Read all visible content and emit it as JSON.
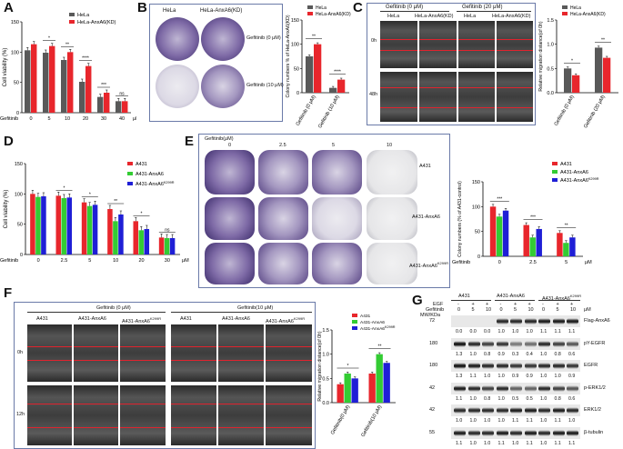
{
  "panels": [
    "A",
    "B",
    "C",
    "D",
    "E",
    "F",
    "G"
  ],
  "panelA": {
    "ylabel": "Cell viability (%)",
    "xprefix": "Gefitinib",
    "xunit": "μM",
    "legend": [
      "HeLa",
      "HeLa-AnxA6(KD)"
    ],
    "colors": [
      "#595959",
      "#e8262c"
    ],
    "chart_data": {
      "type": "bar",
      "categories": [
        "0",
        "5",
        "10",
        "20",
        "30",
        "40"
      ],
      "ylim": [
        0,
        150
      ],
      "yticks": [
        0,
        50,
        100,
        150
      ],
      "series": [
        {
          "name": "HeLa",
          "values": [
            103,
            99,
            87,
            51,
            26,
            19
          ]
        },
        {
          "name": "HeLa-AnxA6(KD)",
          "values": [
            113,
            110,
            100,
            77,
            33,
            19
          ]
        }
      ],
      "sig": [
        "",
        "*",
        "**",
        "****",
        "***",
        "ns"
      ]
    }
  },
  "panelB": {
    "col_labels": [
      "HeLa",
      "HeLa-AnxA6(KD)"
    ],
    "row_labels": [
      "Gefitinib (0 μM)",
      "Gefitinib (10 μM)"
    ],
    "ylabel": "Colony numbers % of HeLa-AnxA6(KD)",
    "legend": [
      "HeLa",
      "HeLa-AnxA6(KD)"
    ],
    "chart_data": {
      "type": "bar",
      "categories": [
        "Gefitinib (0 μM)",
        "Gefitinib (10 μM)"
      ],
      "ylim": [
        0,
        150
      ],
      "yticks": [
        0,
        50,
        100,
        150
      ],
      "series": [
        {
          "name": "HeLa",
          "values": [
            75,
            10
          ]
        },
        {
          "name": "HeLa-AnxA6(KD)",
          "values": [
            100,
            27
          ]
        }
      ],
      "sig": [
        "**",
        "****"
      ]
    }
  },
  "panelC": {
    "groups": [
      "Gefitinib (0 μM)",
      "Gefitinib (20 μM)"
    ],
    "cols": [
      "HeLa",
      "HeLa-AnxA6(KD)",
      "HeLa",
      "HeLa-AnxA6(KD)"
    ],
    "rows": [
      "0h",
      "48h"
    ],
    "ylabel": "Relative migration distance(of 0h)",
    "legend": [
      "HeLa",
      "HeLa-AnxA6(KD)"
    ],
    "chart_data": {
      "type": "bar",
      "categories": [
        "Gefitinib (0 μM)",
        "Gefitinib (20 μM)"
      ],
      "ylim": [
        0,
        1.5
      ],
      "yticks": [
        0.0,
        0.5,
        1.0,
        1.5
      ],
      "series": [
        {
          "name": "HeLa",
          "values": [
            0.5,
            0.93
          ]
        },
        {
          "name": "HeLa-AnxA6(KD)",
          "values": [
            0.36,
            0.72
          ]
        }
      ],
      "sig": [
        "*",
        "**"
      ]
    }
  },
  "panelD": {
    "ylabel": "Cell viability (%)",
    "xprefix": "Gefitinib",
    "xunit": "μM",
    "legend": [
      "A431",
      "A431-AnxA6",
      "A431-AnxA6"
    ],
    "legend_sup": [
      "",
      "",
      "K299R"
    ],
    "colors": [
      "#e8262c",
      "#33cc33",
      "#1f1fd6"
    ],
    "chart_data": {
      "type": "bar",
      "categories": [
        "0",
        "2.5",
        "5",
        "10",
        "20",
        "30"
      ],
      "ylim": [
        0,
        150
      ],
      "yticks": [
        0,
        50,
        100,
        150
      ],
      "series": [
        {
          "name": "A431",
          "values": [
            100,
            97,
            86,
            75,
            55,
            28
          ]
        },
        {
          "name": "A431-AnxA6",
          "values": [
            95,
            93,
            80,
            55,
            40,
            27
          ]
        },
        {
          "name": "A431-AnxA6K299R",
          "values": [
            96,
            94,
            82,
            66,
            42,
            27
          ]
        }
      ],
      "sig": [
        "",
        "*",
        "*",
        "**",
        "*",
        "ns"
      ]
    }
  },
  "panelE": {
    "top_label": "Gefitinib(μM)",
    "doses": [
      "0",
      "2.5",
      "5",
      "10"
    ],
    "rows": [
      "A431",
      "A431-AnxA6",
      "A431-AnxA6"
    ],
    "row_sup": [
      "",
      "",
      "K299R"
    ],
    "ylabel": "Colony numbers (% of A431-control)",
    "legend": [
      "A431",
      "A431-AnxA6",
      "A431-AnxA6"
    ],
    "legend_sup": [
      "",
      "",
      "K299R"
    ],
    "xprefix": "Gefitinib",
    "xunit": "μM",
    "chart_data": {
      "type": "bar",
      "categories": [
        "0",
        "2.5",
        "5"
      ],
      "ylim": [
        0,
        150
      ],
      "yticks": [
        0,
        50,
        100,
        150
      ],
      "series": [
        {
          "name": "A431",
          "values": [
            100,
            63,
            47
          ]
        },
        {
          "name": "A431-AnxA6",
          "values": [
            80,
            38,
            27
          ]
        },
        {
          "name": "A431-AnxA6K299R",
          "values": [
            92,
            55,
            38
          ]
        }
      ],
      "sig": [
        "***",
        "***",
        "**"
      ]
    }
  },
  "panelF": {
    "groups": [
      "Gefitinib (0 μM)",
      "Gefitinib(10 μM)"
    ],
    "cols": [
      "A431",
      "A431-AnxA6",
      "A431-AnxA6",
      "A431",
      "A431-AnxA6",
      "A431-AnxA6"
    ],
    "col_sup": [
      "",
      "",
      "K299R",
      "",
      "",
      "K299R"
    ],
    "rows": [
      "0h",
      "12h"
    ],
    "ylabel": "Relative migration distance(of 0h)",
    "legend": [
      "A431",
      "A431-AnxA6",
      "A431-AnxA6"
    ],
    "legend_sup": [
      "",
      "",
      "K299R"
    ],
    "chart_data": {
      "type": "bar",
      "categories": [
        "Gefitinib(0 μM)",
        "Gefitinib(10 μM)"
      ],
      "ylim": [
        0,
        1.5
      ],
      "yticks": [
        0.0,
        0.5,
        1.0,
        1.5
      ],
      "series": [
        {
          "name": "A431",
          "values": [
            0.38,
            0.6
          ]
        },
        {
          "name": "A431-AnxA6",
          "values": [
            0.6,
            1.0
          ]
        },
        {
          "name": "A431-AnxA6K299R",
          "values": [
            0.5,
            0.82
          ]
        }
      ],
      "sig": [
        "*",
        "**"
      ]
    }
  },
  "panelG": {
    "groups": [
      "A431",
      "A431-AnxA6",
      "A431-AnxA6"
    ],
    "group_sup": [
      "",
      "",
      "K299R"
    ],
    "egf_label": "EGF",
    "gef_label": "Gefitinib",
    "mw_label": "MW/KDa",
    "egf": [
      "-",
      "+",
      "+",
      "-",
      "+",
      "+",
      "-",
      "+",
      "+"
    ],
    "gef": [
      "0",
      "5",
      "10",
      "0",
      "5",
      "10",
      "0",
      "5",
      "10"
    ],
    "unit": "μM",
    "bands": [
      {
        "name": "Flag-AnxA6",
        "mw": "72",
        "quant": [
          "0.0",
          "0.0",
          "0.0",
          "1.0",
          "1.0",
          "1.0",
          "1.1",
          "1.1",
          "1.1"
        ],
        "presence": [
          0,
          0,
          0,
          1,
          1,
          1,
          1,
          1,
          1
        ]
      },
      {
        "name": "pY-EGFR",
        "mw": "180",
        "quant": [
          "1.3",
          "1.0",
          "0.8",
          "0.9",
          "0.3",
          "0.4",
          "1.0",
          "0.8",
          "0.6"
        ],
        "presence": [
          1,
          1,
          1,
          1,
          1,
          1,
          1,
          1,
          1
        ]
      },
      {
        "name": "EGFR",
        "mw": "180",
        "quant": [
          "1.3",
          "1.1",
          "1.0",
          "1.0",
          "0.9",
          "0.9",
          "1.0",
          "1.0",
          "0.9"
        ],
        "presence": [
          1,
          1,
          1,
          1,
          1,
          1,
          1,
          1,
          1
        ]
      },
      {
        "name": "p-ERK1/2",
        "mw": "42",
        "quant": [
          "1.1",
          "1.0",
          "0.8",
          "1.0",
          "0.5",
          "0.5",
          "1.0",
          "0.8",
          "0.6"
        ],
        "presence": [
          1,
          1,
          1,
          1,
          1,
          1,
          1,
          1,
          1
        ]
      },
      {
        "name": "ERK1/2",
        "mw": "42",
        "quant": [
          "1.0",
          "1.0",
          "1.0",
          "1.0",
          "1.1",
          "1.1",
          "1.0",
          "1.1",
          "1.0"
        ],
        "presence": [
          1,
          1,
          1,
          1,
          1,
          1,
          1,
          1,
          1
        ]
      },
      {
        "name": "β-tubulin",
        "mw": "55",
        "quant": [
          "1.1",
          "1.0",
          "1.0",
          "1.1",
          "1.0",
          "1.1",
          "1.0",
          "1.1",
          "1.1"
        ],
        "presence": [
          1,
          1,
          1,
          1,
          1,
          1,
          1,
          1,
          1
        ]
      }
    ]
  }
}
